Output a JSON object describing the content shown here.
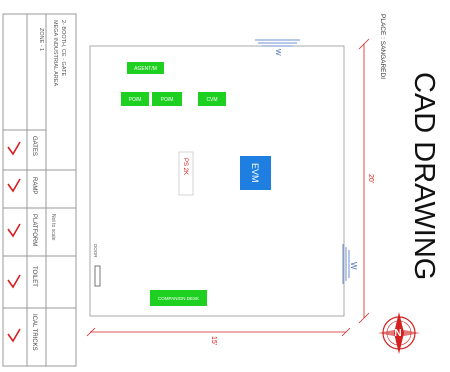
{
  "title": "CAD DRAWING",
  "place": "PLACE : SANGAREDI",
  "header_notes": [
    "2- BOOTH, CE - GATE",
    "MEGA INDUSTRIAL AREA",
    "ZONE - 1"
  ],
  "north_label": "N",
  "dimensions": {
    "width": "15'",
    "height": "20'"
  },
  "windows": {
    "top": "W",
    "right": "W"
  },
  "side_labels": [
    "GATES",
    "RAMP",
    "PLATFORM",
    "TOILET",
    "ICAL TRICKS"
  ],
  "side_note": "Not to scale",
  "boxes": {
    "agent": "AGENT/M",
    "po1": "PO/M",
    "po2": "PO/M",
    "cvm": "CVM",
    "ps": "PS 2K",
    "evm": "EVM",
    "door": "DOOR",
    "companion": "COMPANION DESK"
  },
  "colors": {
    "green": "#1ed020",
    "blue": "#1e7fe0",
    "red": "#d42020",
    "frame": "#999999"
  }
}
